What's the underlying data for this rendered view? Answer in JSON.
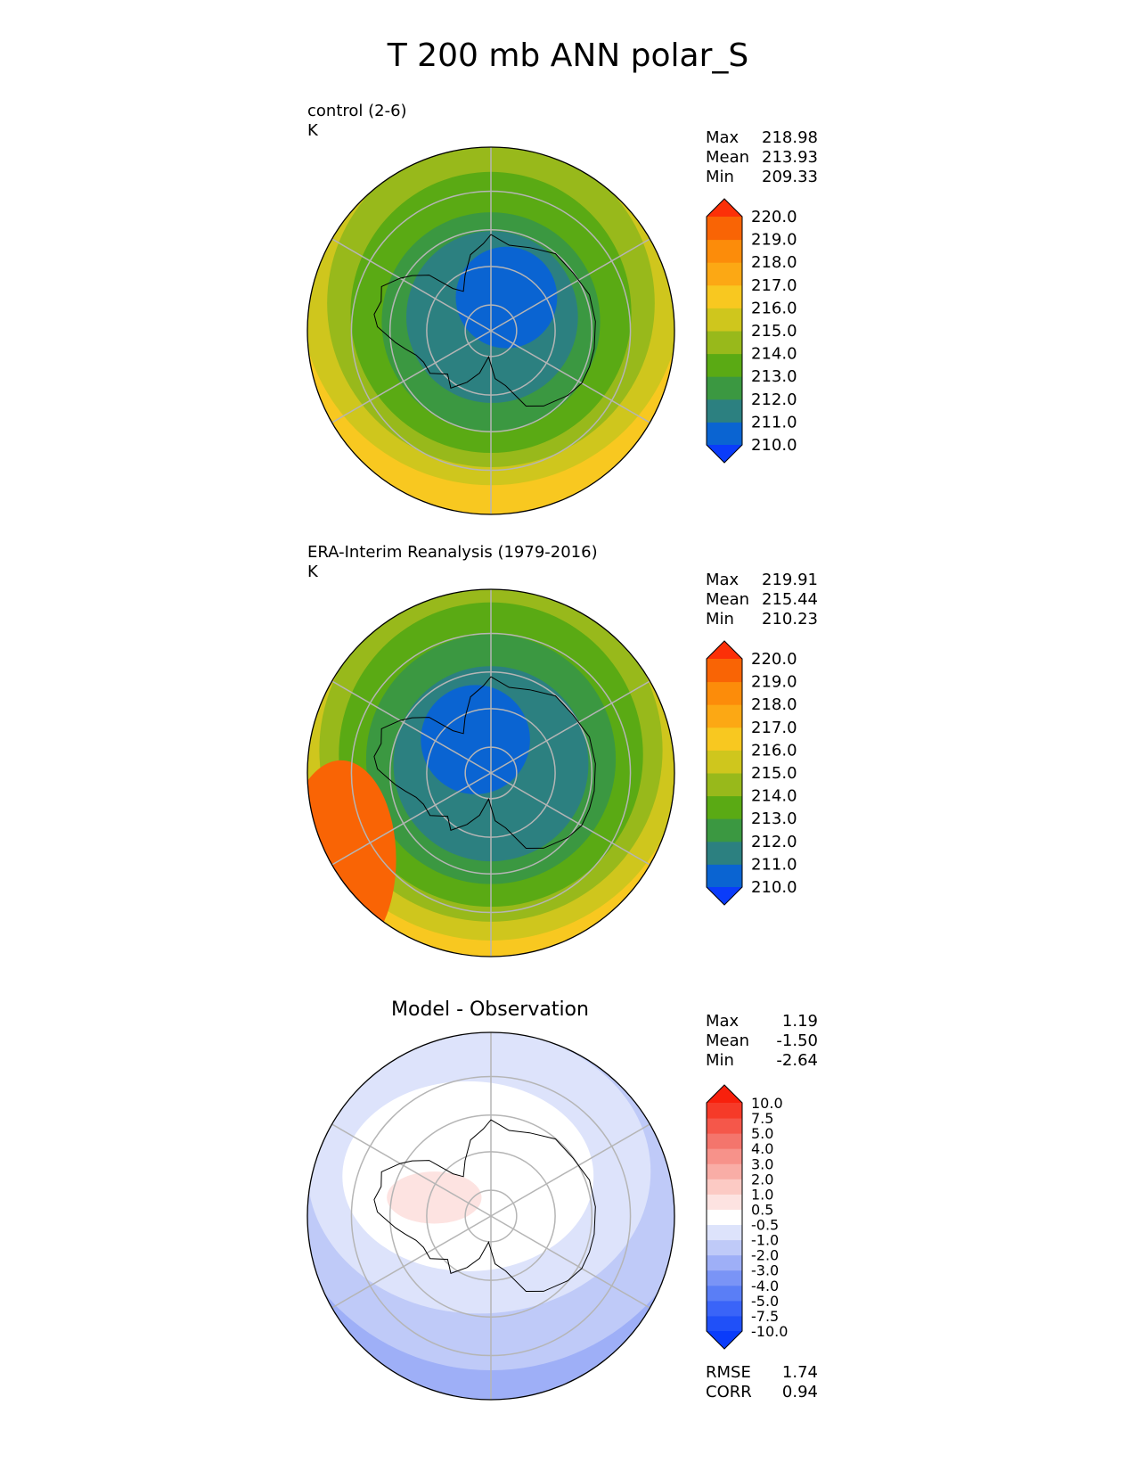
{
  "figure_title": "T 200 mb ANN polar_S",
  "panels": [
    {
      "id": "test",
      "label": "control (2-6)",
      "units": "K",
      "stats": [
        [
          "Max",
          "218.98"
        ],
        [
          "Mean",
          "213.93"
        ],
        [
          "Min",
          "209.33"
        ]
      ]
    },
    {
      "id": "ref",
      "label": "ERA-Interim Reanalysis (1979-2016)",
      "units": "K",
      "stats": [
        [
          "Max",
          "219.91"
        ],
        [
          "Mean",
          "215.44"
        ],
        [
          "Min",
          "210.23"
        ]
      ]
    },
    {
      "id": "diff",
      "title": "Model - Observation",
      "stats": [
        [
          "Max",
          "1.19"
        ],
        [
          "Mean",
          "-1.50"
        ],
        [
          "Min",
          "-2.64"
        ]
      ],
      "metrics": [
        [
          "RMSE",
          "1.74"
        ],
        [
          "CORR",
          "0.94"
        ]
      ]
    }
  ],
  "chart_data": [
    {
      "type": "heatmap",
      "title": "control (2-6)",
      "units": "K",
      "projection": "south-polar-stereographic",
      "levels": [
        210,
        211,
        212,
        213,
        214,
        215,
        216,
        217,
        218,
        219,
        220
      ],
      "tick_labels": [
        "210.0",
        "211.0",
        "212.0",
        "213.0",
        "214.0",
        "215.0",
        "216.0",
        "217.0",
        "218.0",
        "219.0",
        "220.0"
      ],
      "colors": [
        "#0a3cfa",
        "#0a64d2",
        "#2c8080",
        "#3b9841",
        "#5aaa14",
        "#98b91b",
        "#cfc61d",
        "#f8c820",
        "#fca814",
        "#fc8c0a",
        "#f96405",
        "#fc3008"
      ],
      "field_summary": {
        "max": 218.98,
        "mean": 213.93,
        "min": 209.33
      },
      "zones": [
        {
          "value": 210,
          "center_lon": -155,
          "center_colat": 8,
          "radius_deg": 13,
          "stretch": 1.0
        },
        {
          "value": 211,
          "center_lon": -175,
          "center_colat": 3,
          "radius_deg": 22,
          "stretch": 1.0
        },
        {
          "value": 212,
          "center_lon": 180,
          "center_colat": 2,
          "radius_deg": 28,
          "stretch": 1.0
        },
        {
          "value": 213,
          "center_lon": 180,
          "center_colat": 4,
          "radius_deg": 36,
          "stretch": 1.0
        },
        {
          "value": 214,
          "center_lon": 180,
          "center_colat": 6,
          "radius_deg": 42,
          "stretch": 1.0
        },
        {
          "value": 215,
          "center_lon": 180,
          "center_colat": 8,
          "radius_deg": 49,
          "stretch": 1.0
        },
        {
          "value": 216,
          "center_lon": -45,
          "center_colat": 6,
          "radius_deg": 52,
          "stretch": 1.0
        },
        {
          "value": 217,
          "center_lon": 15,
          "center_colat": 14,
          "radius_deg": 66,
          "stretch": 0.95
        },
        {
          "value": 218,
          "center_lon": 55,
          "center_colat": 58,
          "radius_deg": 10,
          "stretch": 1.0
        }
      ],
      "background_value": 217
    },
    {
      "type": "heatmap",
      "title": "ERA-Interim Reanalysis (1979-2016)",
      "units": "K",
      "projection": "south-polar-stereographic",
      "levels": [
        210,
        211,
        212,
        213,
        214,
        215,
        216,
        217,
        218,
        219,
        220
      ],
      "tick_labels": [
        "210.0",
        "211.0",
        "212.0",
        "213.0",
        "214.0",
        "215.0",
        "216.0",
        "217.0",
        "218.0",
        "219.0",
        "220.0"
      ],
      "colors": [
        "#0a3cfa",
        "#0a64d2",
        "#2c8080",
        "#3b9841",
        "#5aaa14",
        "#98b91b",
        "#cfc61d",
        "#f8c820",
        "#fca814",
        "#fc8c0a",
        "#f96405",
        "#fc3008"
      ],
      "field_summary": {
        "max": 219.91,
        "mean": 215.44,
        "min": 210.23
      },
      "zones": [
        {
          "value": 210,
          "center_lon": 155,
          "center_colat": 8,
          "radius_deg": 14,
          "stretch": 1.0
        },
        {
          "value": 211,
          "center_lon": 180,
          "center_colat": 2,
          "radius_deg": 25,
          "stretch": 1.0
        },
        {
          "value": 212,
          "center_lon": 180,
          "center_colat": 3,
          "radius_deg": 32,
          "stretch": 1.0
        },
        {
          "value": 213,
          "center_lon": 180,
          "center_colat": 4,
          "radius_deg": 39,
          "stretch": 1.0
        },
        {
          "value": 214,
          "center_lon": 180,
          "center_colat": 5,
          "radius_deg": 44,
          "stretch": 1.0
        },
        {
          "value": 215,
          "center_lon": 180,
          "center_colat": 6,
          "radius_deg": 50,
          "stretch": 1.0
        },
        {
          "value": 216,
          "center_lon": 180,
          "center_colat": 5,
          "radius_deg": 57,
          "stretch": 1.0
        },
        {
          "value": 217,
          "center_lon": 180,
          "center_colat": 4,
          "radius_deg": 64,
          "stretch": 1.0
        }
      ],
      "edge_patch": {
        "value": 219,
        "center_lon": 60,
        "center_colat": 66,
        "radius_deg": 12
      },
      "background_value": 218
    },
    {
      "type": "heatmap",
      "title": "Model - Observation",
      "units": "K",
      "projection": "south-polar-stereographic",
      "levels": [
        -10,
        -7.5,
        -5,
        -4,
        -3,
        -2,
        -1,
        -0.5,
        0.5,
        1,
        2,
        3,
        4,
        5,
        7.5,
        10
      ],
      "tick_labels": [
        "-10.0",
        "-7.5",
        "-5.0",
        "-4.0",
        "-3.0",
        "-2.0",
        "-1.0",
        "-0.5",
        "0.5",
        "1.0",
        "2.0",
        "3.0",
        "4.0",
        "5.0",
        "7.5",
        "10.0"
      ],
      "colors": [
        "#0a3cfa",
        "#2050f8",
        "#3a64f8",
        "#5a7ef6",
        "#7a94f6",
        "#9eaff7",
        "#bfcaf8",
        "#dde3fb",
        "#ffffff",
        "#fde3e1",
        "#fccac4",
        "#f9ada6",
        "#f7928a",
        "#f4756c",
        "#f5574a",
        "#f63a28",
        "#f8200c"
      ],
      "field_summary": {
        "max": 1.19,
        "mean": -1.5,
        "min": -2.64
      },
      "metrics": {
        "rmse": 1.74,
        "corr": 0.94
      },
      "zones": [
        {
          "value": -1.5,
          "center_lon": 180,
          "center_colat": 14,
          "radius_deg": 56,
          "stretch": 1.0
        },
        {
          "value": -0.75,
          "center_lon": 165,
          "center_colat": 10,
          "radius_deg": 40,
          "stretch": 1.1
        },
        {
          "value": 0,
          "center_lon": 150,
          "center_colat": 10,
          "radius_deg": 28,
          "stretch": 1.15
        },
        {
          "value": 0.75,
          "center_lon": 108,
          "center_colat": 13,
          "radius_deg": 9,
          "stretch": 1.35
        }
      ],
      "background_value": -2.5
    }
  ]
}
